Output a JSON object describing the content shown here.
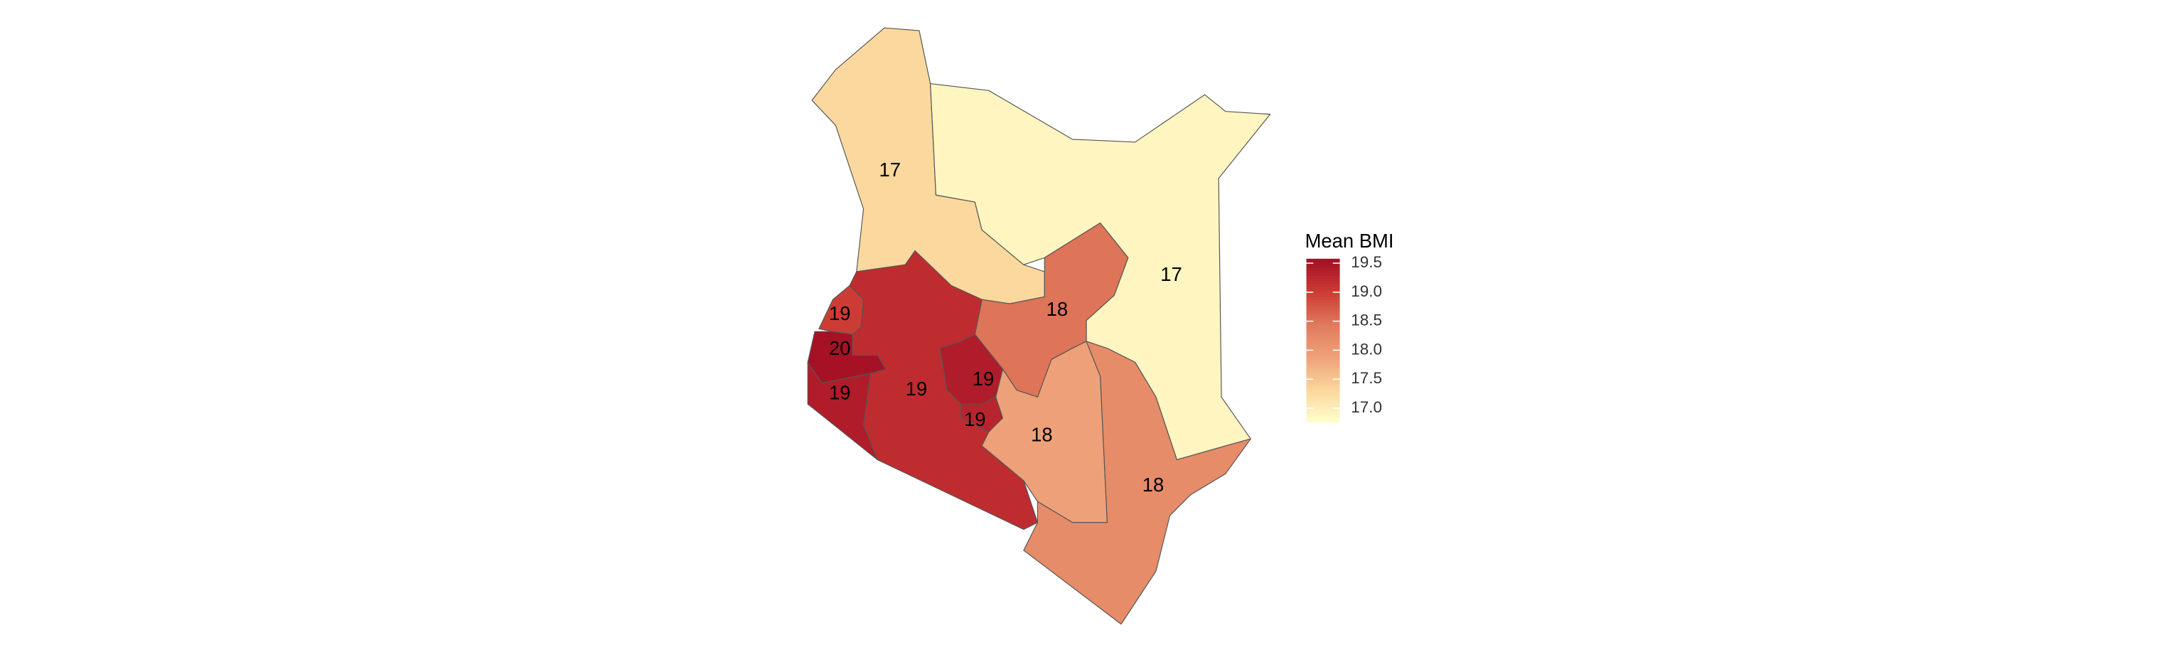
{
  "chart_data": {
    "type": "choropleth",
    "legend_title": "Mean BMI",
    "colorbar": {
      "lim": [
        16.76,
        19.57
      ],
      "colors": [
        "#ffffcc",
        "#fbd69c",
        "#eea27a",
        "#e07a5c",
        "#cc3b34",
        "#a50f26"
      ],
      "ticks": [
        {
          "value": 17,
          "label": "17.0"
        },
        {
          "value": 17.5,
          "label": "17.5"
        },
        {
          "value": 18,
          "label": "18.0"
        },
        {
          "value": 18.5,
          "label": "18.5"
        },
        {
          "value": 19,
          "label": "19.0"
        },
        {
          "value": 19.5,
          "label": "19.5"
        }
      ]
    },
    "regions": [
      {
        "value": 17.3,
        "label": "17"
      },
      {
        "value": 16.9,
        "label": "17"
      },
      {
        "value": 18.5,
        "label": "18"
      },
      {
        "value": 19.2,
        "label": "19"
      },
      {
        "value": 19.0,
        "label": "19"
      },
      {
        "value": 19.55,
        "label": "20"
      },
      {
        "value": 19.4,
        "label": "19"
      },
      {
        "value": 19.4,
        "label": "19"
      },
      {
        "value": 19.3,
        "label": "19"
      },
      {
        "value": 17.9,
        "label": "18"
      },
      {
        "value": 18.2,
        "label": "18"
      }
    ]
  }
}
